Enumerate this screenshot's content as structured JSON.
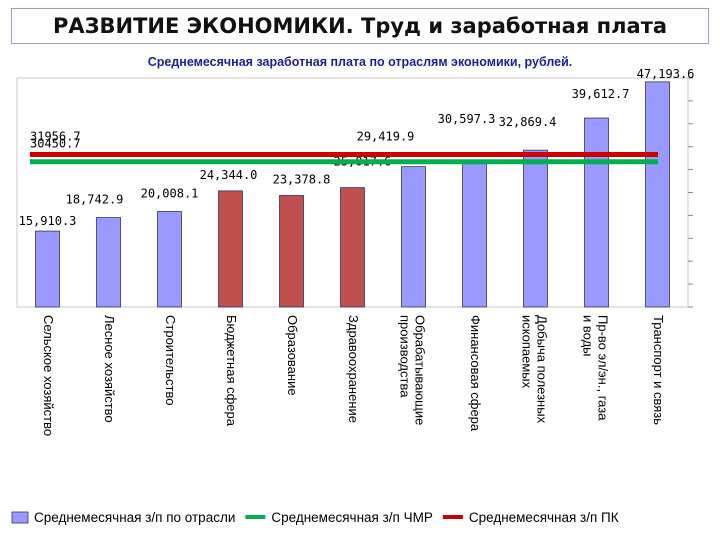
{
  "page": {
    "title": "РАЗВИТИЕ ЭКОНОМИКИ. Труд и заработная плата"
  },
  "chart_data": {
    "type": "bar",
    "subtitle": "Среднемесячная заработная плата по отраслям экономики, рублей.",
    "categories": [
      "Сельское хозяйство",
      "Лесное хозяйство",
      "Строительство",
      "Бюджетная сфера",
      "Образование",
      "Здравоохранение",
      "Обрабатывающие производства",
      "Финансовая сфера",
      "Добыча полезных ископаемых",
      "Пр-во эл/эн., газа и воды",
      "Транспорт и связь"
    ],
    "values": [
      15910.3,
      18742.9,
      20008.1,
      24344.0,
      23378.8,
      25017.6,
      29419.9,
      30597.3,
      32869.4,
      39612.7,
      47193.6
    ],
    "value_labels": [
      "15,910.3",
      "18,742.9",
      "20,008.1",
      "24,344.0",
      "23,378.8",
      "25,017.6",
      "29,419.9",
      "30,597.3",
      "32,869.4",
      "39,612.7",
      "47,193.6"
    ],
    "bar_colors": [
      "#9999ff",
      "#9999ff",
      "#9999ff",
      "#c0504d",
      "#c0504d",
      "#c0504d",
      "#9999ff",
      "#9999ff",
      "#9999ff",
      "#9999ff",
      "#9999ff"
    ],
    "reference_lines": [
      {
        "name": "Среднемесячная з/п ЧМР",
        "value": 30450.7,
        "label": "30450.7",
        "color": "#00b050"
      },
      {
        "name": "Среднемесячная з/п ПК",
        "value": 31956.7,
        "label": "31956.7",
        "color": "#cc0000"
      }
    ],
    "legend": [
      {
        "label": "Среднемесячная з/п по отрасли",
        "kind": "box",
        "color": "#9999ff"
      },
      {
        "label": "Среднемесячная з/п ЧМР",
        "kind": "line",
        "color": "#00b050"
      },
      {
        "label": "Среднемесячная з/п ПК",
        "kind": "line",
        "color": "#cc0000"
      }
    ],
    "legend_position": "bottom",
    "ylim": [
      0,
      48000
    ],
    "grid": false
  }
}
